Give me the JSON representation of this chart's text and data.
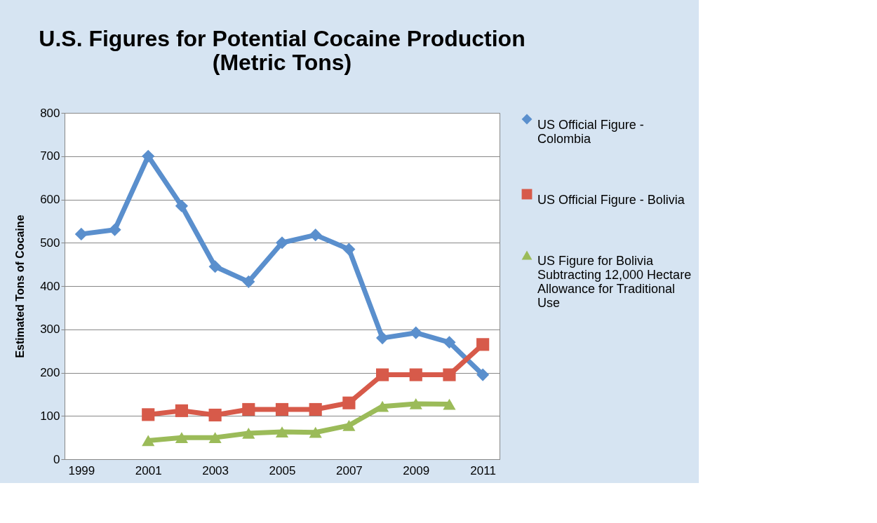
{
  "chart_data": {
    "type": "line",
    "title": "U.S. Figures for Potential Cocaine Production\n(Metric Tons)",
    "ylabel": "Estimated Tons of Cocaine",
    "categories": [
      "1999",
      null,
      "2001",
      null,
      "2003",
      null,
      "2005",
      null,
      "2007",
      null,
      "2009",
      null,
      "2011"
    ],
    "ylim": [
      0,
      800
    ],
    "yticks": [
      0,
      100,
      200,
      300,
      400,
      500,
      600,
      700,
      800
    ],
    "grid": "y",
    "legend": "right",
    "line_style": "solid",
    "series": [
      {
        "name": "US Official Figure - Colombia",
        "color": "#5a8fcd",
        "marker": "diamond",
        "values": [
          520,
          530,
          700,
          585,
          445,
          410,
          500,
          518,
          485,
          280,
          292,
          270,
          195
        ]
      },
      {
        "name": "US Official Figure - Bolivia",
        "color": "#d75a4a",
        "marker": "square",
        "values": [
          null,
          null,
          103,
          112,
          102,
          115,
          115,
          115,
          130,
          195,
          195,
          195,
          265
        ]
      },
      {
        "name": "US Figure for Bolivia Subtracting 12,000 Hectare Allowance for Traditional Use",
        "color": "#9bbb59",
        "marker": "triangle",
        "values": [
          null,
          null,
          43,
          50,
          50,
          60,
          63,
          62,
          78,
          122,
          128,
          127,
          null
        ]
      }
    ]
  }
}
